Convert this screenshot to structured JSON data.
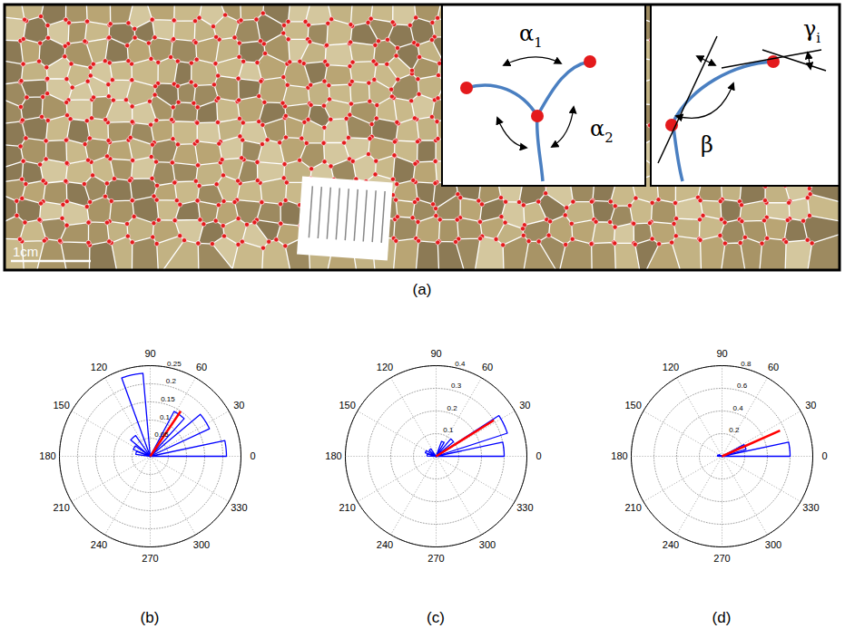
{
  "figure": {
    "label": "(a)",
    "scale_bar": "1cm",
    "inset_angles": [
      {
        "text": "α",
        "sub": "1"
      },
      {
        "text": "α",
        "sub": "2"
      }
    ],
    "inset_curve": [
      {
        "text": "β",
        "sub": ""
      },
      {
        "text": "γ",
        "sub": "i"
      }
    ]
  },
  "chart_data": [
    {
      "type": "polar_histogram",
      "panel": "(b)",
      "xticks": [
        0,
        30,
        60,
        90,
        120,
        150,
        180,
        210,
        240,
        270,
        300,
        330
      ],
      "ylim": [
        0,
        0.25
      ],
      "yticks": [
        0.05,
        0.1,
        0.15,
        0.2,
        0.25
      ],
      "theta_start": [
        0,
        25,
        48,
        95,
        125,
        145,
        160
      ],
      "theta_end": [
        12,
        40,
        62,
        110,
        140,
        158,
        172
      ],
      "values": [
        0.21,
        0.18,
        0.14,
        0.23,
        0.07,
        0.05,
        0.04
      ],
      "color": "#0000ff",
      "mean_vector": {
        "angle": 56,
        "length": 0.15,
        "color": "#ff0000"
      }
    },
    {
      "type": "polar_histogram",
      "panel": "(c)",
      "xticks": [
        0,
        30,
        60,
        90,
        120,
        150,
        180,
        210,
        240,
        270,
        300,
        330
      ],
      "ylim": [
        0,
        0.4
      ],
      "yticks": [
        0.1,
        0.2,
        0.3,
        0.4
      ],
      "theta_start": [
        0,
        18,
        40,
        60,
        125,
        150,
        165
      ],
      "theta_end": [
        12,
        33,
        50,
        70,
        140,
        162,
        178
      ],
      "values": [
        0.3,
        0.33,
        0.1,
        0.07,
        0.04,
        0.05,
        0.04
      ],
      "color": "#0000ff",
      "mean_vector": {
        "angle": 32,
        "length": 0.3,
        "color": "#ff0000"
      }
    },
    {
      "type": "polar_histogram",
      "panel": "(d)",
      "xticks": [
        0,
        30,
        60,
        90,
        120,
        150,
        180,
        210,
        240,
        270,
        300,
        330
      ],
      "ylim": [
        0,
        0.8
      ],
      "yticks": [
        0.2,
        0.4,
        0.6,
        0.8
      ],
      "theta_start": [
        0,
        16,
        150,
        165
      ],
      "theta_end": [
        12,
        28,
        162,
        178
      ],
      "values": [
        0.6,
        0.22,
        0.03,
        0.04
      ],
      "color": "#0000ff",
      "mean_vector": {
        "angle": 24,
        "length": 0.56,
        "color": "#ff0000"
      }
    }
  ]
}
